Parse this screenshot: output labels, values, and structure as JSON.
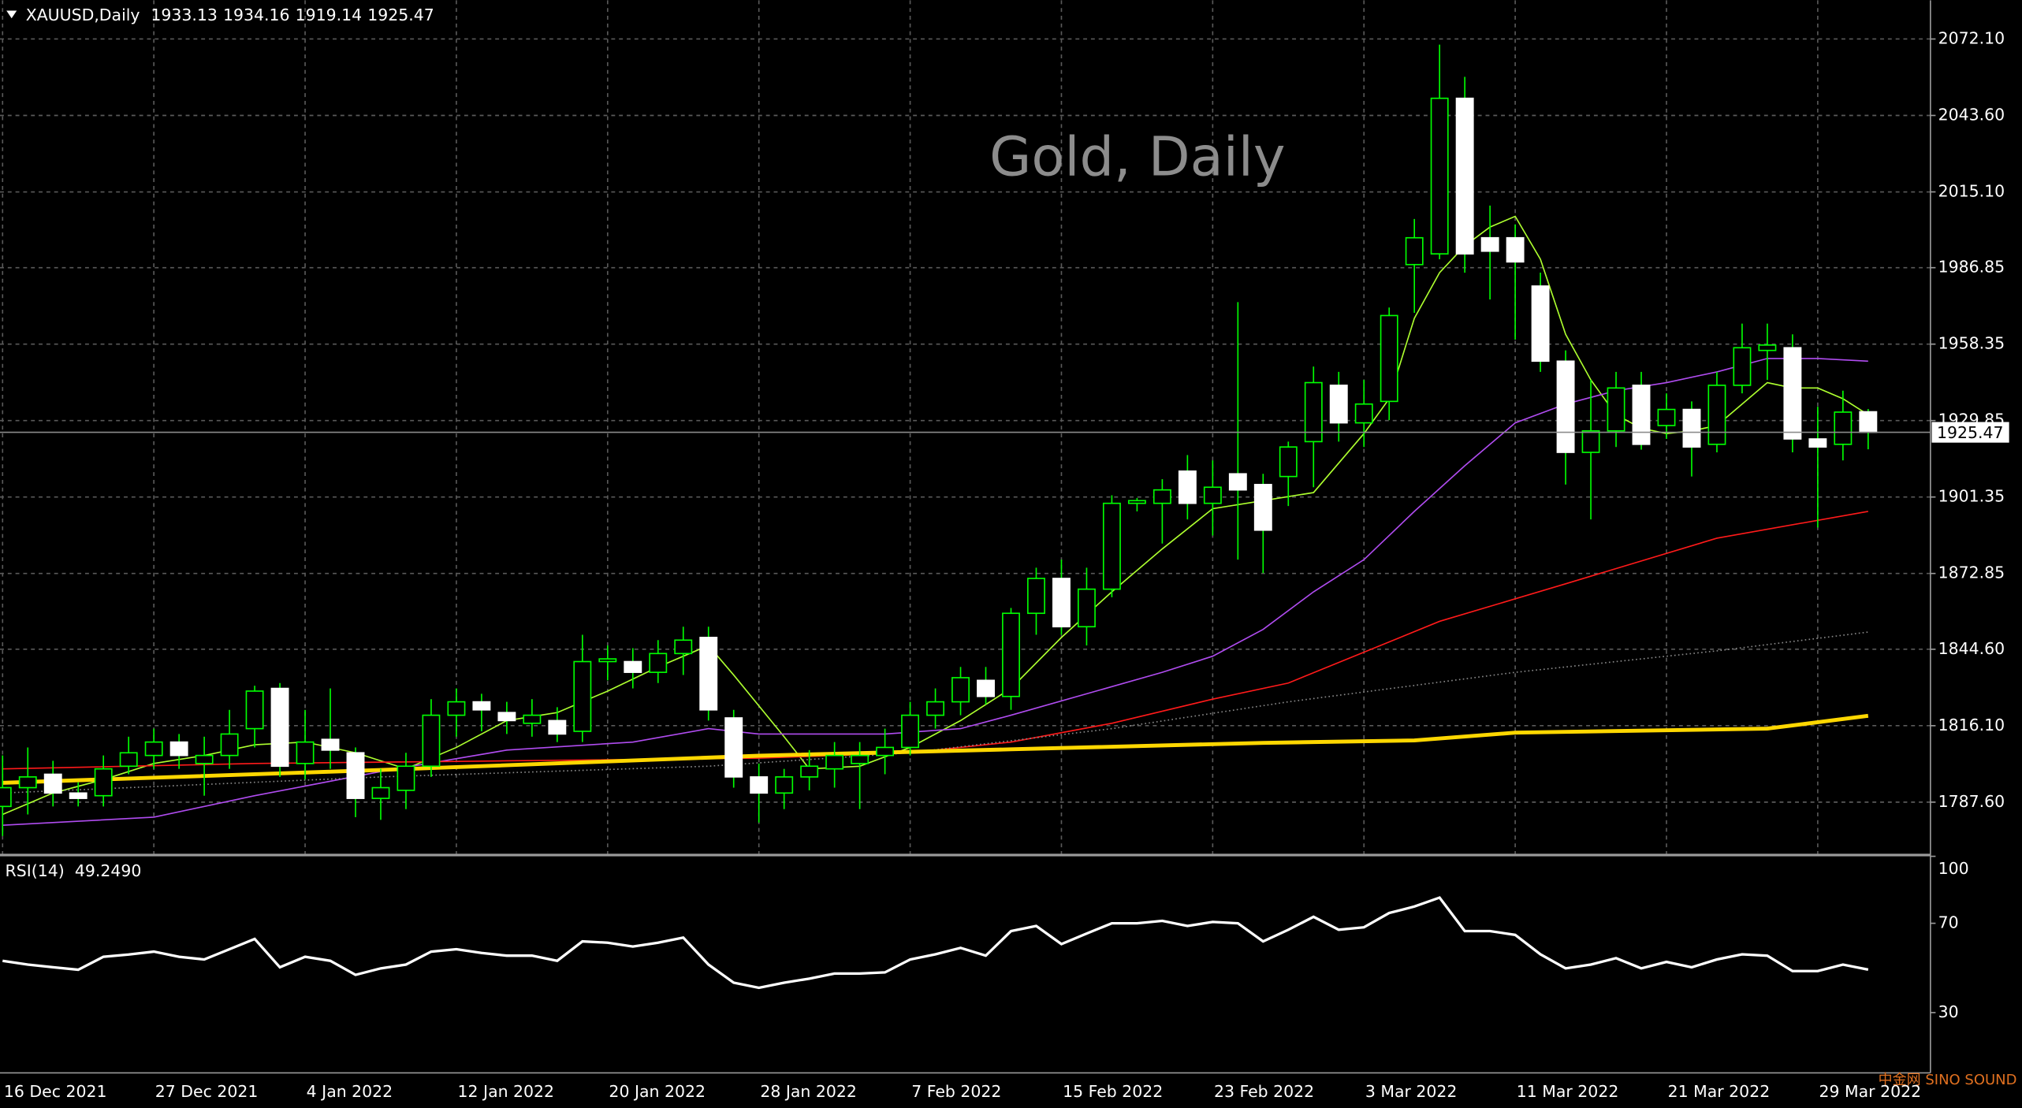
{
  "chart_data": {
    "type": "candlestick",
    "header_symbol": "XAUUSD,Daily",
    "title": "Gold, Daily",
    "categories": [
      "16 Dec 2021",
      null,
      null,
      null,
      null,
      null,
      "27 Dec 2021",
      null,
      null,
      null,
      null,
      null,
      "4 Jan 2022",
      null,
      null,
      null,
      null,
      null,
      "12 Jan 2022",
      null,
      null,
      null,
      null,
      null,
      "20 Jan 2022",
      null,
      null,
      null,
      null,
      null,
      "28 Jan 2022",
      null,
      null,
      null,
      null,
      null,
      "7 Feb 2022",
      null,
      null,
      null,
      null,
      null,
      "15 Feb 2022",
      null,
      null,
      null,
      null,
      null,
      "23 Feb 2022",
      null,
      null,
      null,
      null,
      null,
      "3 Mar 2022",
      null,
      null,
      null,
      null,
      null,
      "11 Mar 2022",
      null,
      null,
      null,
      null,
      null,
      "21 Mar 2022",
      null,
      null,
      null,
      null,
      null,
      "29 Mar 2022",
      null,
      null
    ],
    "open": [
      1786,
      1793,
      1798,
      1791,
      1790,
      1801,
      1805,
      1810,
      1802,
      1805,
      1815,
      1830,
      1802,
      1811,
      1806,
      1789,
      1792,
      1801,
      1820,
      1825,
      1821,
      1817,
      1818,
      1814,
      1840,
      1840,
      1836,
      1843,
      1849,
      1819,
      1797,
      1791,
      1797,
      1800,
      1802,
      1805,
      1808,
      1820,
      1825,
      1833,
      1827,
      1858,
      1871,
      1853,
      1867,
      1899,
      1899,
      1911,
      1899,
      1910,
      1906,
      1909,
      1922,
      1943,
      1929,
      1937,
      1988,
      1992,
      2050,
      1998,
      1998,
      1980,
      1952,
      1918,
      1926,
      1943,
      1928,
      1934,
      1921,
      1943,
      1956,
      1957,
      1923,
      1921,
      1933.13
    ],
    "high": [
      1805,
      1808,
      1803,
      1795,
      1805,
      1812,
      1815,
      1813,
      1812,
      1822,
      1831,
      1832,
      1822,
      1830,
      1808,
      1800,
      1806,
      1826,
      1830,
      1828,
      1825,
      1826,
      1823,
      1850,
      1846,
      1845,
      1848,
      1853,
      1853,
      1822,
      1802,
      1800,
      1807,
      1810,
      1810,
      1815,
      1825,
      1830,
      1838,
      1838,
      1860,
      1875,
      1878,
      1875,
      1902,
      1901,
      1908,
      1917,
      1915,
      1974,
      1910,
      1922,
      1950,
      1948,
      1945,
      1972,
      2005,
      2070,
      2058,
      2010,
      2003,
      1985,
      1956,
      1945,
      1948,
      1948,
      1940,
      1937,
      1948,
      1966,
      1966,
      1962,
      1935,
      1941,
      1934.16
    ],
    "low": [
      1775,
      1783,
      1786,
      1786,
      1786,
      1798,
      1800,
      1800,
      1790,
      1800,
      1808,
      1797,
      1796,
      1800,
      1782,
      1781,
      1785,
      1797,
      1812,
      1814,
      1813,
      1812,
      1810,
      1810,
      1833,
      1830,
      1832,
      1835,
      1818,
      1793,
      1780,
      1785,
      1792,
      1793,
      1785,
      1798,
      1805,
      1815,
      1820,
      1824,
      1822,
      1850,
      1850,
      1846,
      1864,
      1896,
      1884,
      1893,
      1887,
      1878,
      1873,
      1898,
      1905,
      1922,
      1920,
      1930,
      1970,
      1990,
      1985,
      1975,
      1960,
      1948,
      1906,
      1893,
      1920,
      1919,
      1923,
      1909,
      1918,
      1940,
      1945,
      1918,
      1890,
      1915,
      1919.14
    ],
    "close": [
      1793,
      1797,
      1791,
      1789,
      1800,
      1806,
      1810,
      1805,
      1805,
      1813,
      1829,
      1801,
      1810,
      1807,
      1789,
      1793,
      1801,
      1820,
      1825,
      1822,
      1818,
      1820,
      1813,
      1840,
      1841,
      1836,
      1843,
      1848,
      1822,
      1797,
      1791,
      1797,
      1801,
      1805,
      1805,
      1808,
      1820,
      1825,
      1834,
      1827,
      1858,
      1871,
      1853,
      1867,
      1899,
      1900,
      1904,
      1899,
      1905,
      1904,
      1889,
      1920,
      1944,
      1929,
      1936,
      1969,
      1998,
      2050,
      1992,
      1993,
      1989,
      1952,
      1918,
      1926,
      1942,
      1921,
      1934,
      1920,
      1943,
      1957,
      1958,
      1923,
      1920,
      1933,
      1925.47
    ],
    "bull_color": "#00ff00",
    "bear_color": "#ffffff",
    "ma_series": [
      {
        "color": "#adff2f",
        "style": "solid",
        "width": 1,
        "x": [
          0,
          2,
          4,
          6,
          8,
          10,
          12,
          14,
          16,
          18,
          20,
          22,
          24,
          26,
          28,
          29,
          31,
          32,
          34,
          36,
          38,
          40,
          42,
          44,
          46,
          48,
          50,
          52,
          54,
          55,
          56,
          57,
          58,
          59,
          60,
          61,
          62,
          63,
          64,
          65,
          66,
          67,
          68,
          69,
          70,
          71,
          72,
          73,
          74
        ],
        "values": [
          1783,
          1791,
          1796,
          1802,
          1805,
          1809,
          1810,
          1806,
          1800,
          1808,
          1818,
          1821,
          1829,
          1838,
          1846,
          1835,
          1812,
          1800,
          1801,
          1808,
          1818,
          1830,
          1849,
          1866,
          1882,
          1897,
          1900,
          1903,
          1925,
          1938,
          1968,
          1985,
          1995,
          2002,
          2006,
          1990,
          1962,
          1945,
          1932,
          1927,
          1925,
          1926,
          1928,
          1936,
          1944,
          1942,
          1942,
          1938,
          1932
        ]
      },
      {
        "color": "#b04cf0",
        "style": "solid",
        "width": 1,
        "x": [
          0,
          6,
          10,
          15,
          20,
          25,
          28,
          30,
          35,
          38,
          40,
          43,
          46,
          48,
          50,
          52,
          54,
          56,
          58,
          60,
          62,
          64,
          66,
          68,
          70,
          72,
          74
        ],
        "values": [
          1779,
          1782,
          1790,
          1799,
          1807,
          1810,
          1815,
          1813,
          1813,
          1815,
          1820,
          1828,
          1836,
          1842,
          1852,
          1866,
          1878,
          1896,
          1913,
          1929,
          1936,
          1941,
          1944,
          1948,
          1953,
          1953,
          1952
        ]
      },
      {
        "color": "#ff1a1a",
        "style": "solid",
        "width": 1,
        "x": [
          0,
          10,
          20,
          30,
          36,
          40,
          44,
          48,
          51,
          57,
          62,
          68,
          74
        ],
        "values": [
          1800,
          1802,
          1803,
          1804,
          1806,
          1810,
          1817,
          1826,
          1832,
          1855,
          1869,
          1886,
          1896
        ]
      },
      {
        "color": "#8a8a8a",
        "style": "dotted",
        "width": 1,
        "x": [
          0,
          15,
          28,
          36,
          44,
          51,
          60,
          68,
          74
        ],
        "values": [
          1791,
          1797,
          1801,
          1806,
          1815,
          1825,
          1836,
          1844,
          1851
        ]
      },
      {
        "color": "#ffd700",
        "style": "solid",
        "width": 3,
        "x": [
          0,
          15,
          30,
          40,
          50,
          56,
          60,
          70,
          74
        ],
        "values": [
          1794.8,
          1799.6,
          1804.9,
          1807.3,
          1809.7,
          1810.6,
          1813.5,
          1815,
          1819.8
        ]
      }
    ],
    "ylim": [
      1768.37,
      2086.52
    ],
    "yticks": [
      {
        "value": 2072.1,
        "label": "2072.10"
      },
      {
        "value": 2043.6,
        "label": "2043.60"
      },
      {
        "value": 2015.1,
        "label": "2015.10"
      },
      1986.85,
      1958.35,
      1929.85,
      1901.35,
      1872.85,
      {
        "value": 1844.6,
        "label": "1844.60"
      },
      {
        "value": 1816.1,
        "label": "1816.10"
      },
      {
        "value": 1787.6,
        "label": "1787.60"
      }
    ],
    "grid": true,
    "rsi": {
      "name": "RSI(14)",
      "current_label": "49.2490",
      "color": "#ffffff",
      "values": [
        53.2,
        51.5,
        50.3,
        49.2,
        55,
        56,
        57.3,
        55,
        53.8,
        58.4,
        63,
        50.3,
        55,
        53.2,
        46.9,
        49.8,
        51.5,
        57.3,
        58.4,
        56.7,
        55.5,
        55.5,
        53.2,
        61.9,
        61.3,
        59.6,
        61.3,
        63.6,
        51.5,
        43.4,
        41.1,
        43.4,
        45.2,
        47.5,
        47.5,
        48,
        53.8,
        56.1,
        59,
        55.5,
        66.5,
        68.8,
        60.7,
        65.4,
        70,
        70,
        71.1,
        68.8,
        70.6,
        70,
        61.9,
        67.1,
        72.9,
        67.1,
        68.2,
        74.6,
        77.5,
        81.5,
        66.5,
        66.5,
        64.8,
        56.1,
        49.8,
        51.5,
        54.4,
        49.8,
        52.7,
        50.3,
        53.8,
        56.1,
        55.5,
        48.6,
        48.6,
        51.5,
        49.249
      ],
      "ylim": [
        3,
        100
      ],
      "yticks": [
        100,
        70,
        30
      ]
    },
    "watermark": "中金网 SINO SOUND"
  }
}
